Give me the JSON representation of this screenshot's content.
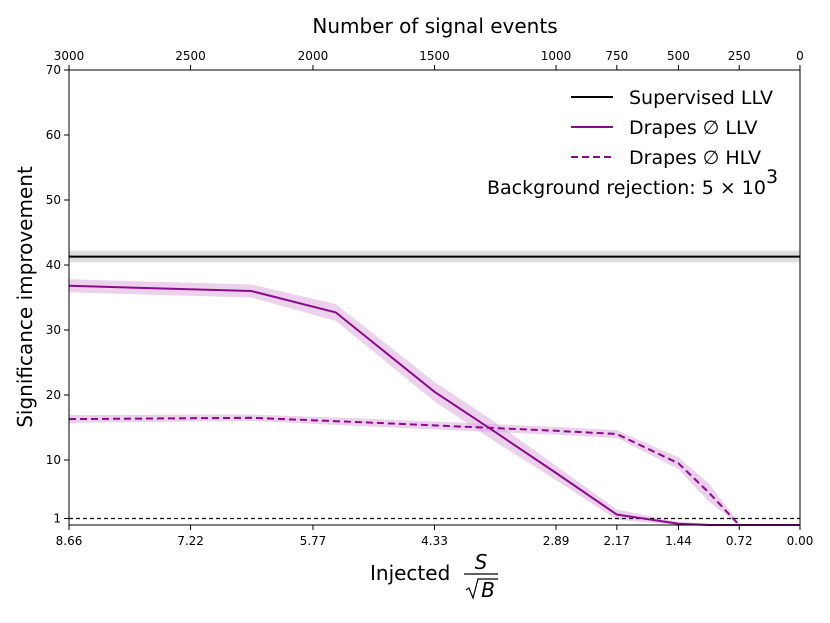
{
  "chart_data": {
    "type": "line",
    "top_axis_title": "Number of signal events",
    "ylabel": "Significance improvement",
    "xlabel_prefix": "Injected",
    "xlabel_num": "S",
    "xlabel_den": "B",
    "annotation": {
      "text": "Background rejection: 5 × 10",
      "exp": "3"
    },
    "ylim": [
      0,
      70
    ],
    "yticks": [
      1,
      10,
      20,
      30,
      40,
      50,
      60,
      70
    ],
    "xlim": [
      8.66,
      0.0
    ],
    "xticks": [
      {
        "value": 8.66,
        "label": "8.66"
      },
      {
        "value": 7.22,
        "label": "7.22"
      },
      {
        "value": 5.77,
        "label": "5.77"
      },
      {
        "value": 4.33,
        "label": "4.33"
      },
      {
        "value": 2.89,
        "label": "2.89"
      },
      {
        "value": 2.17,
        "label": "2.17"
      },
      {
        "value": 1.44,
        "label": "1.44"
      },
      {
        "value": 0.72,
        "label": "0.72"
      },
      {
        "value": 0.0,
        "label": "0.00"
      }
    ],
    "top_xticks": [
      {
        "value": 8.66,
        "label": "3000"
      },
      {
        "value": 7.22,
        "label": "2500"
      },
      {
        "value": 5.77,
        "label": "2000"
      },
      {
        "value": 4.33,
        "label": "1500"
      },
      {
        "value": 2.89,
        "label": "1000"
      },
      {
        "value": 2.17,
        "label": "750"
      },
      {
        "value": 1.44,
        "label": "500"
      },
      {
        "value": 0.72,
        "label": "250"
      },
      {
        "value": 0.0,
        "label": "0"
      }
    ],
    "reference_line": {
      "y": 1,
      "style": "dashed",
      "color": "#000000"
    },
    "legend_position": "top-right",
    "series": [
      {
        "name": "Supervised LLV",
        "color": "#000000",
        "style": "solid",
        "x": [
          8.66,
          0.0
        ],
        "y": [
          41.3,
          41.3
        ],
        "band": [
          0.9,
          0.9
        ],
        "band_color": "#bfbfbf"
      },
      {
        "name": "Drapes ∅ LLV",
        "color": "#8b0a8b",
        "style": "solid",
        "x": [
          8.66,
          6.5,
          5.5,
          4.33,
          3.61,
          2.89,
          2.17,
          1.44,
          1.08,
          0.72,
          0.36,
          0.0
        ],
        "y": [
          36.8,
          36.0,
          32.7,
          20.5,
          14.3,
          8.0,
          1.6,
          0.2,
          0.0,
          0.0,
          0.0,
          0.0
        ],
        "band": [
          1.0,
          1.0,
          1.3,
          1.5,
          1.5,
          1.1,
          0.8,
          0.3,
          0.2,
          0.1,
          0.1,
          0.1
        ],
        "band_color": "#d9a3d9"
      },
      {
        "name": "Drapes ∅ HLV",
        "color": "#8b0a8b",
        "style": "dashed",
        "x": [
          8.66,
          6.5,
          5.0,
          3.61,
          2.89,
          2.17,
          1.44,
          1.08,
          0.72,
          0.36,
          0.0
        ],
        "y": [
          16.3,
          16.5,
          15.7,
          14.9,
          14.5,
          14.0,
          9.5,
          5.0,
          0.0,
          0.0,
          0.0
        ],
        "band": [
          0.6,
          0.5,
          0.6,
          0.6,
          0.6,
          0.6,
          0.9,
          1.4,
          0.2,
          0.1,
          0.1
        ],
        "band_color": "#d9a3d9"
      }
    ]
  }
}
